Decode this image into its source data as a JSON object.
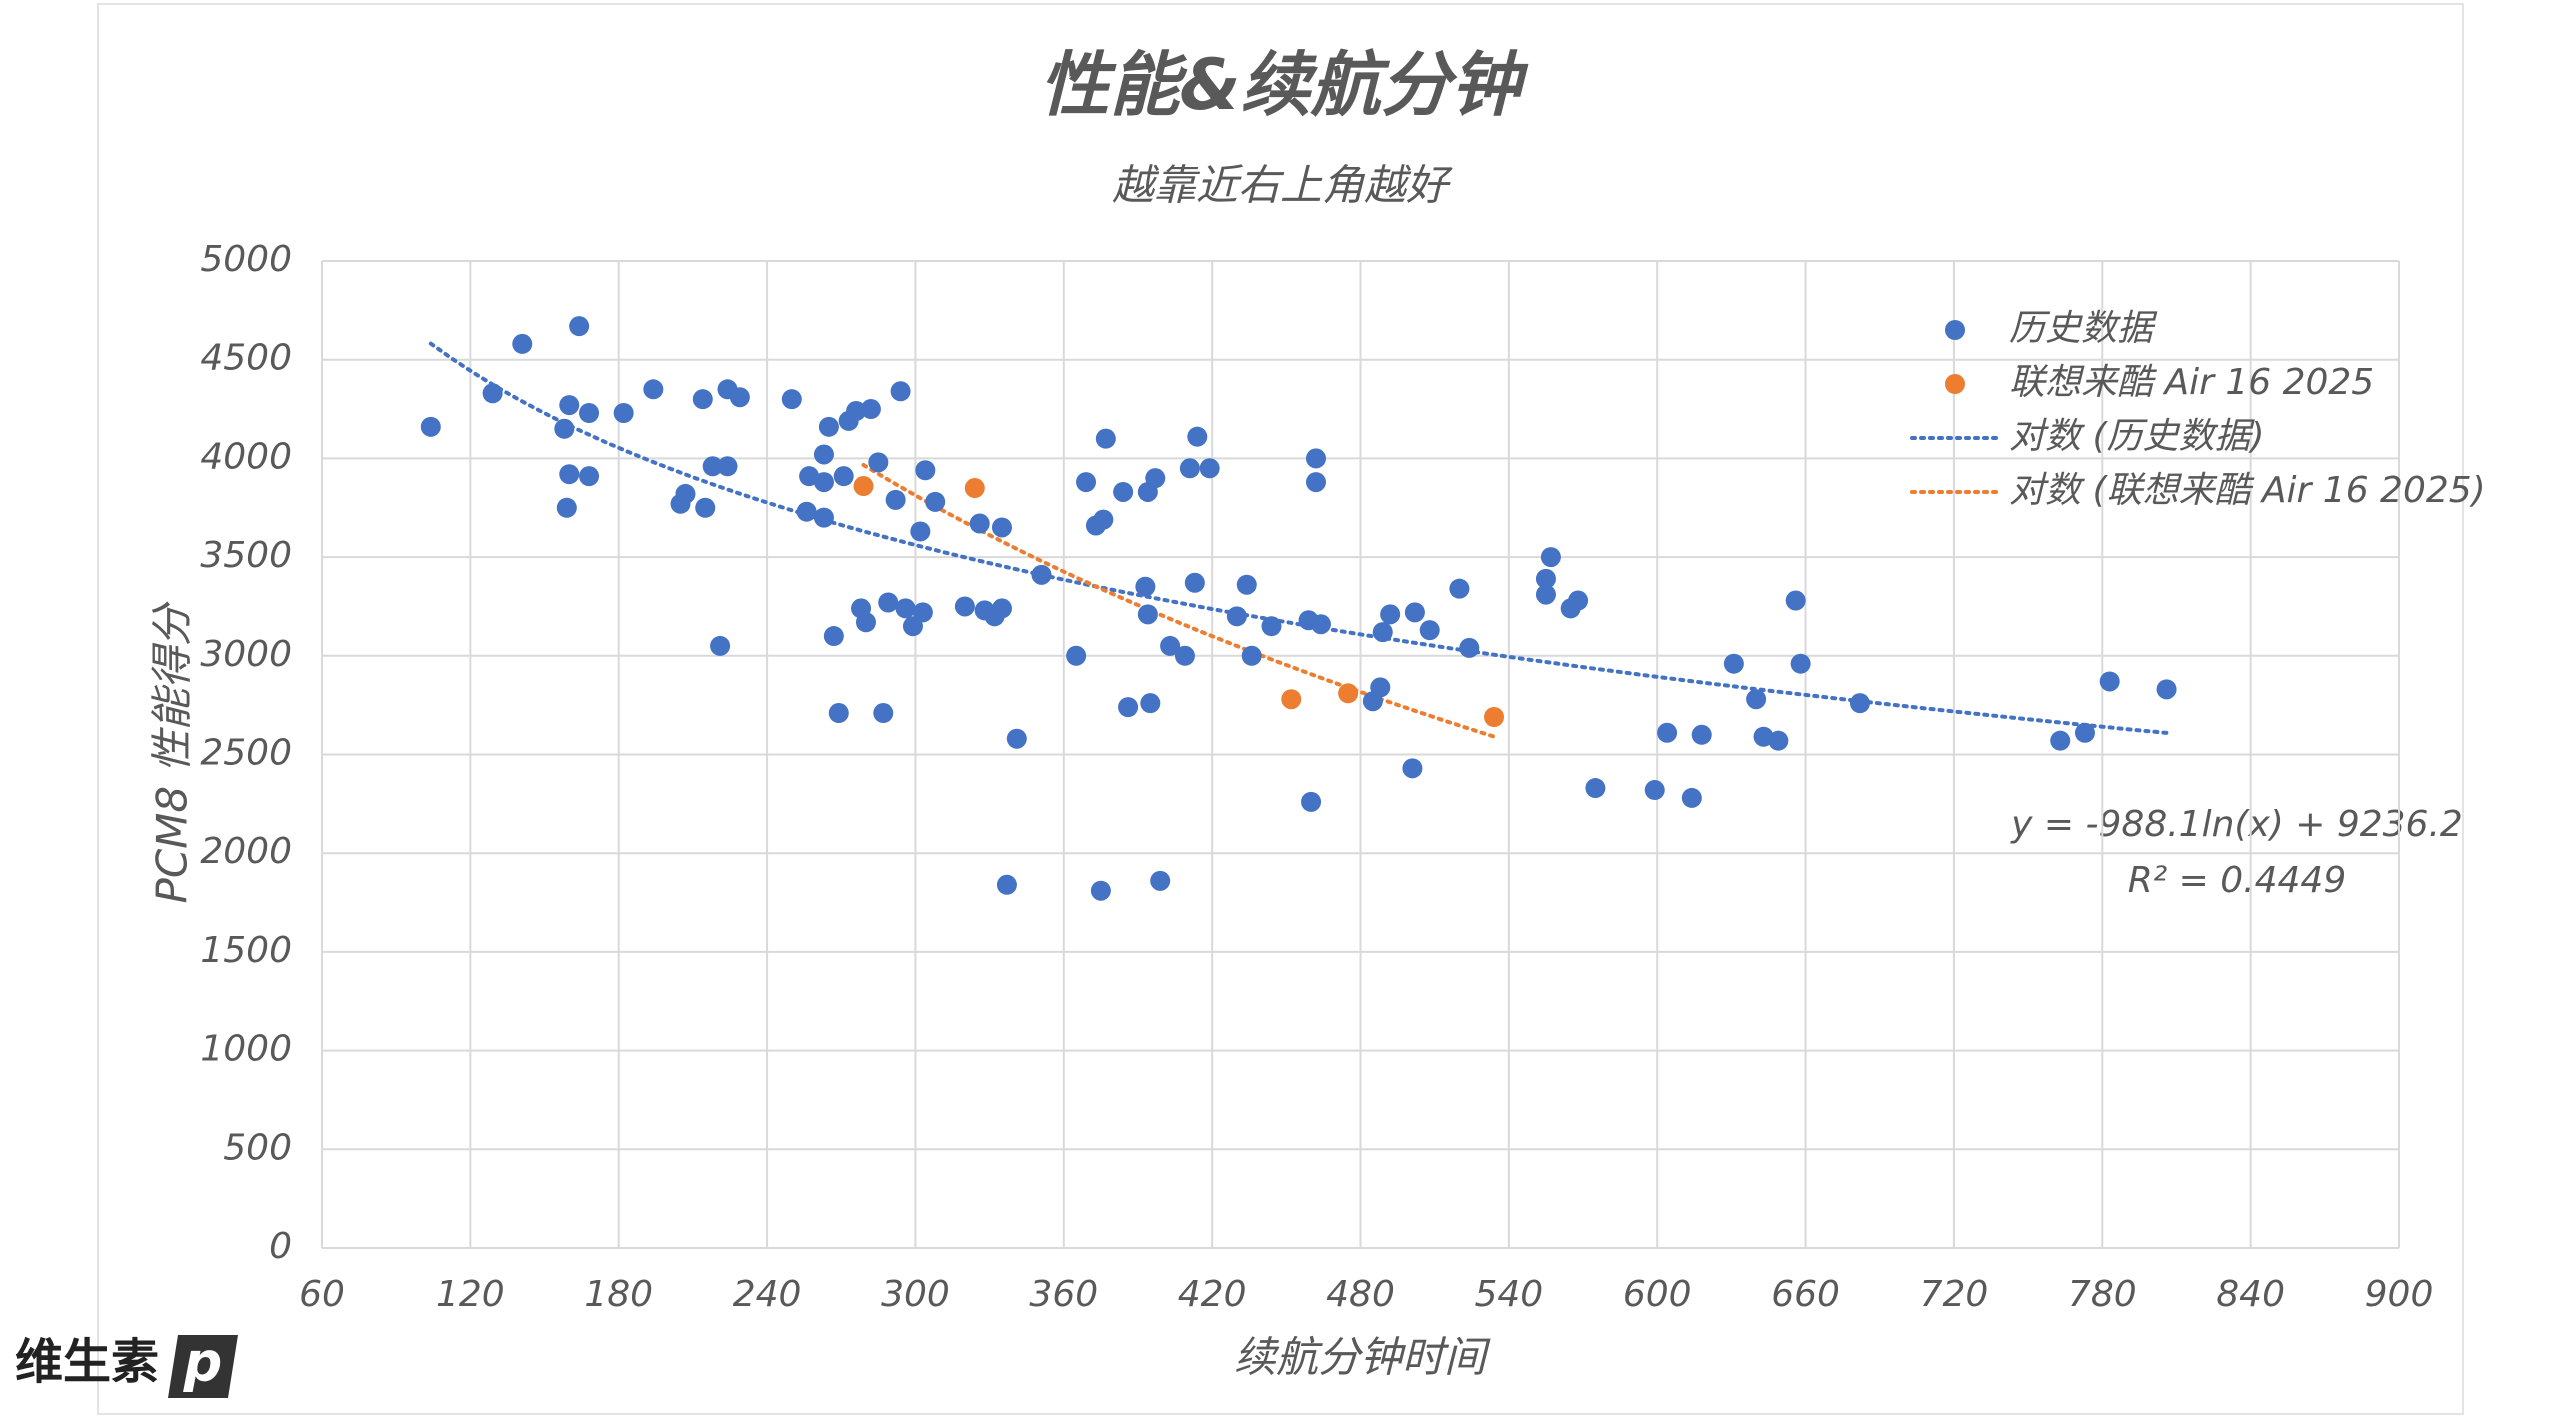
{
  "chart_data": {
    "type": "scatter",
    "title": "性能&续航分钟",
    "subtitle": "越靠近右上角越好",
    "x_label": "续航分钟时间",
    "y_label": "PCM8 性能得分",
    "xlim": [
      60,
      900
    ],
    "xticks": [
      60,
      120,
      180,
      240,
      300,
      360,
      420,
      480,
      540,
      600,
      660,
      720,
      780,
      840,
      900
    ],
    "ylim": [
      0,
      5000
    ],
    "yticks": [
      0,
      500,
      1000,
      1500,
      2000,
      2500,
      3000,
      3500,
      4000,
      4500,
      5000
    ],
    "grid": true,
    "legend": "upper-right",
    "series": [
      {
        "name": "历史数据",
        "color": "#4472c4",
        "trendline": {
          "type": "log",
          "name": "对数 (历史数据)",
          "equation": "y = -988.1ln(x) + 9236.2",
          "r_squared": "R² = 0.4449"
        },
        "x": [
          104,
          129,
          141,
          164,
          160,
          158,
          160,
          159,
          168,
          168,
          182,
          194,
          205,
          207,
          214,
          215,
          218,
          221,
          224,
          224,
          229,
          250,
          256,
          257,
          263,
          263,
          263,
          265,
          267,
          269,
          271,
          273,
          276,
          278,
          280,
          282,
          285,
          287,
          289,
          292,
          294,
          296,
          299,
          302,
          303,
          304,
          308,
          320,
          326,
          328,
          332,
          335,
          335,
          337,
          341,
          351,
          365,
          369,
          373,
          375,
          376,
          377,
          384,
          386,
          393,
          394,
          394,
          395,
          397,
          399,
          403,
          409,
          411,
          413,
          414,
          419,
          430,
          434,
          436,
          444,
          459,
          460,
          462,
          462,
          464,
          485,
          488,
          489,
          492,
          502,
          501,
          508,
          520,
          524,
          555,
          555,
          557,
          565,
          568,
          575,
          599,
          604,
          614,
          618,
          631,
          640,
          643,
          649,
          656,
          658,
          682,
          763,
          773,
          783,
          806
        ],
        "values": [
          4160,
          4330,
          4580,
          4670,
          4270,
          4150,
          3920,
          3750,
          3910,
          4230,
          4230,
          4350,
          3770,
          3820,
          4300,
          3750,
          3960,
          3050,
          4350,
          3960,
          4310,
          4300,
          3730,
          3910,
          4020,
          3700,
          3880,
          4160,
          3100,
          2710,
          3910,
          4190,
          4240,
          3240,
          3170,
          4250,
          3980,
          2710,
          3270,
          3790,
          4340,
          3240,
          3150,
          3630,
          3220,
          3940,
          3780,
          3250,
          3670,
          3230,
          3200,
          3650,
          3240,
          1840,
          2580,
          3410,
          3000,
          3880,
          3660,
          1810,
          3690,
          4100,
          3830,
          2740,
          3350,
          3210,
          3830,
          2760,
          3900,
          1860,
          3050,
          3000,
          3950,
          3370,
          4110,
          3950,
          3200,
          3360,
          3000,
          3150,
          3180,
          2260,
          4000,
          3880,
          3160,
          2770,
          2840,
          3120,
          3210,
          3220,
          2430,
          3130,
          3340,
          3040,
          3310,
          3390,
          3500,
          3240,
          3280,
          2330,
          2320,
          2610,
          2280,
          2600,
          2960,
          2780,
          2590,
          2570,
          3280,
          2960,
          2760,
          2570,
          2610,
          2870,
          2830
        ]
      },
      {
        "name": "联想来酷 Air 16 2025",
        "color": "#ed7d31",
        "trendline": {
          "type": "log",
          "name": "对数 (联想来酷 Air 16 2025)"
        },
        "x": [
          279,
          324,
          452,
          475,
          534
        ],
        "values": [
          3860,
          3850,
          2780,
          2810,
          2690
        ]
      }
    ],
    "logo": "维生素",
    "logo_mark": "p"
  }
}
